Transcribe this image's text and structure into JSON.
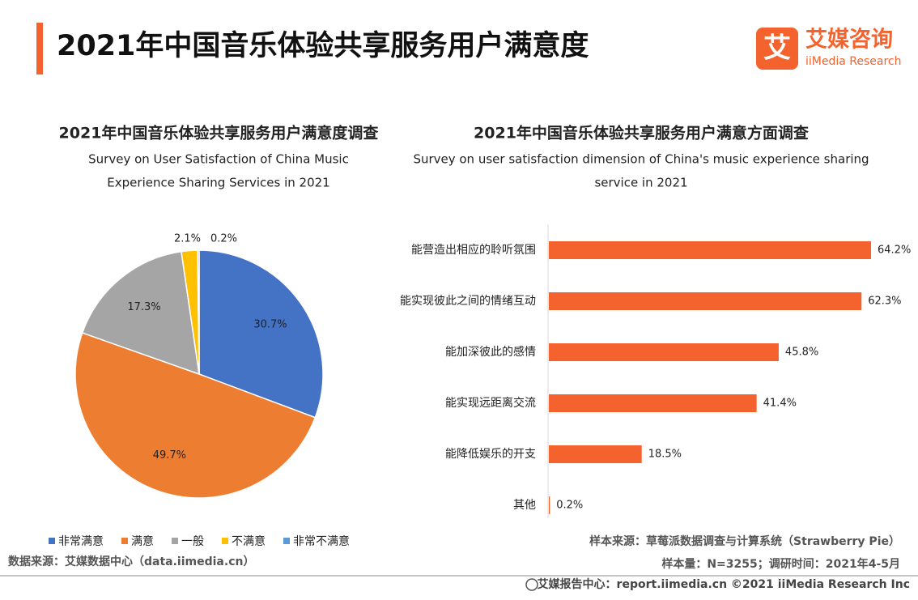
{
  "title": "2021年中国音乐体验共享服务用户满意度",
  "logo": {
    "mark": "艾",
    "name": "艾媒咨询",
    "sub": "iiMedia Research"
  },
  "chart_data": [
    {
      "type": "pie",
      "title": "2021年中国音乐体验共享服务用户满意度调查",
      "subtitle": [
        "Survey on User Satisfaction of China Music",
        "Experience Sharing Services in 2021"
      ],
      "categories": [
        "非常满意",
        "满意",
        "一般",
        "不满意",
        "非常不满意"
      ],
      "values": [
        30.7,
        49.7,
        17.3,
        2.1,
        0.2
      ],
      "value_labels": [
        "30.7%",
        "49.7%",
        "17.3%",
        "2.1%",
        "0.2%"
      ],
      "colors": [
        "#4472c4",
        "#ed7d31",
        "#a5a5a5",
        "#ffc000",
        "#5b9bd5"
      ],
      "legend": "bottom"
    },
    {
      "type": "bar",
      "orientation": "horizontal",
      "title": "2021年中国音乐体验共享服务用户满意方面调查",
      "subtitle": [
        "Survey on user satisfaction dimension of China's music experience sharing",
        "service in 2021"
      ],
      "categories": [
        "能营造出相应的聆听氛围",
        "能实现彼此之间的情绪互动",
        "能加深彼此的感情",
        "能实现远距离交流",
        "能降低娱乐的开支",
        "其他"
      ],
      "values": [
        64.2,
        62.3,
        45.8,
        41.4,
        18.5,
        0.2
      ],
      "value_labels": [
        "64.2%",
        "62.3%",
        "45.8%",
        "41.4%",
        "18.5%",
        "0.2%"
      ],
      "color": "#f4622d"
    }
  ],
  "source": "数据来源：艾媒数据中心（data.iimedia.cn）",
  "sample_source": "样本来源：草莓派数据调查与计算系统（Strawberry Pie）",
  "sample_size": "样本量：N=3255；调研时间：2021年4-5月",
  "footer": "艾媒报告中心：report.iimedia.cn   ©2021  iiMedia Research  Inc"
}
